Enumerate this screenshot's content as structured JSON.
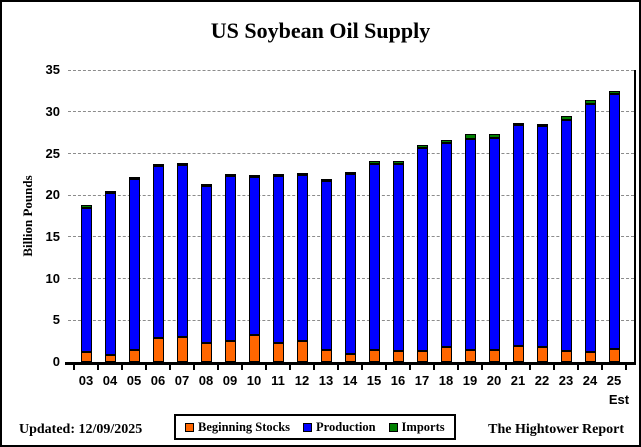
{
  "title": "US Soybean Oil Supply",
  "chart_data": {
    "type": "bar",
    "stacked": true,
    "title": "US Soybean Oil Supply",
    "xlabel": "",
    "ylabel": "Billion Pounds",
    "ylim": [
      0,
      35
    ],
    "yticks": [
      0,
      5,
      10,
      15,
      20,
      25,
      30,
      35
    ],
    "grid": "horizontal dashed gray",
    "legend_position": "bottom center",
    "x_note": "Est",
    "categories": [
      "03",
      "04",
      "05",
      "06",
      "07",
      "08",
      "09",
      "10",
      "11",
      "12",
      "13",
      "14",
      "15",
      "16",
      "17",
      "18",
      "19",
      "20",
      "21",
      "22",
      "23",
      "24",
      "25"
    ],
    "series": [
      {
        "name": "Beginning Stocks",
        "color": "#FF6600",
        "values": [
          1.2,
          0.8,
          1.4,
          2.9,
          3.0,
          2.3,
          2.5,
          3.3,
          2.3,
          2.5,
          1.4,
          1.0,
          1.4,
          1.3,
          1.3,
          1.8,
          1.4,
          1.4,
          1.9,
          1.8,
          1.3,
          1.2,
          1.5
        ]
      },
      {
        "name": "Production",
        "color": "#0000FF",
        "values": [
          17.3,
          19.6,
          20.7,
          20.7,
          20.8,
          19.0,
          20.0,
          19.0,
          20.2,
          19.9,
          20.4,
          21.5,
          22.4,
          22.5,
          24.4,
          24.5,
          25.4,
          25.5,
          26.5,
          26.5,
          27.7,
          29.8,
          30.6
        ]
      },
      {
        "name": "Imports",
        "color": "#008000",
        "values": [
          0.3,
          0.1,
          0.1,
          0.1,
          0.1,
          0.1,
          0.1,
          0.1,
          0.1,
          0.3,
          0.1,
          0.3,
          0.3,
          0.3,
          0.3,
          0.3,
          0.5,
          0.4,
          0.3,
          0.3,
          0.5,
          0.4,
          0.4
        ]
      }
    ],
    "totals": [
      18.8,
      20.5,
      22.2,
      23.7,
      23.9,
      21.4,
      22.6,
      22.4,
      22.6,
      22.7,
      21.9,
      22.8,
      24.1,
      24.1,
      26.0,
      26.6,
      27.3,
      27.3,
      28.7,
      28.6,
      29.5,
      31.4,
      32.5
    ]
  },
  "footer": {
    "updated": "Updated: 12/09/2025",
    "source": "The Hightower Report"
  },
  "colors": {
    "beginning_stocks": "#FF6600",
    "production": "#0000FF",
    "imports": "#008000",
    "gridline": "#8C8C8C",
    "axis": "#000000",
    "background": "#FFFFFF"
  }
}
